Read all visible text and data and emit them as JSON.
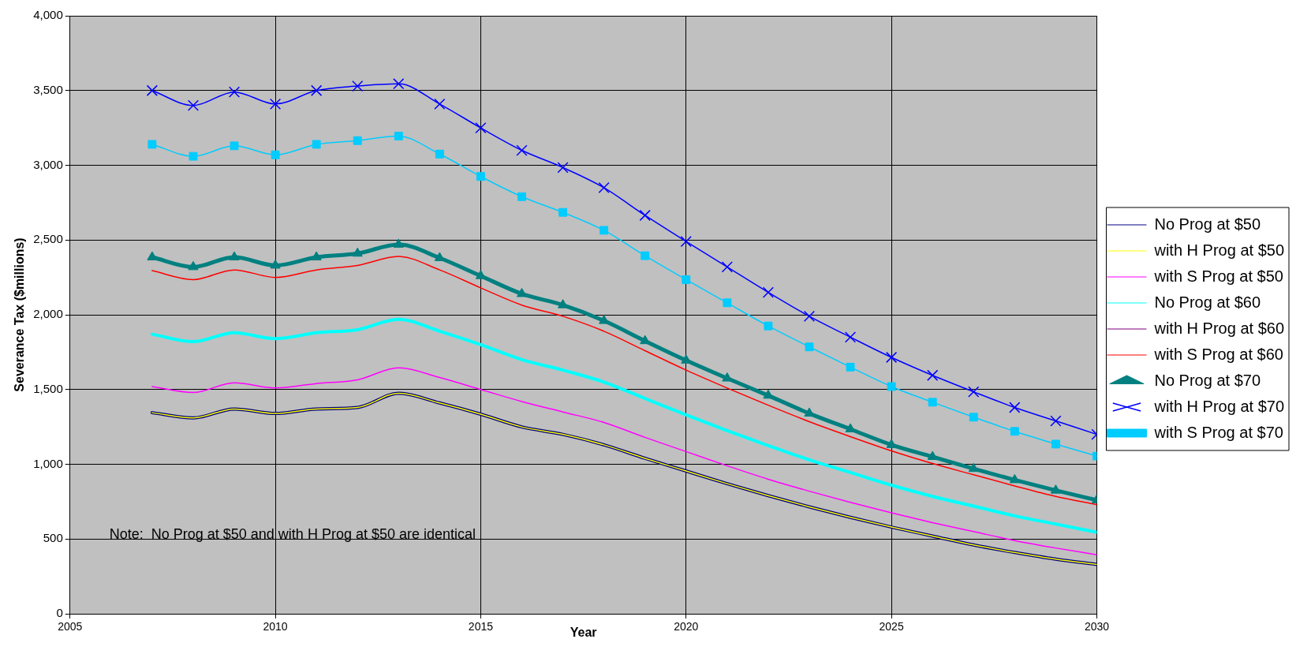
{
  "chart_data": {
    "type": "line",
    "xlabel": "Year",
    "ylabel": "Severance Tax ($millions)",
    "x": [
      2007,
      2008,
      2009,
      2010,
      2011,
      2012,
      2013,
      2014,
      2015,
      2016,
      2017,
      2018,
      2019,
      2020,
      2021,
      2022,
      2023,
      2024,
      2025,
      2026,
      2027,
      2028,
      2029,
      2030
    ],
    "xlim": [
      2005,
      2030
    ],
    "xticks": [
      2005,
      2010,
      2015,
      2020,
      2025,
      2030
    ],
    "ylim": [
      0,
      4000
    ],
    "yticks": [
      {
        "value": 0,
        "label": "0"
      },
      {
        "value": 500,
        "label": "500"
      },
      {
        "value": 1000,
        "label": "1,000"
      },
      {
        "value": 1500,
        "label": "1,500"
      },
      {
        "value": 2000,
        "label": "2,000"
      },
      {
        "value": 2500,
        "label": "2,500"
      },
      {
        "value": 3000,
        "label": "3,000"
      },
      {
        "value": 3500,
        "label": "3,500"
      },
      {
        "value": 4000,
        "label": "4,000"
      }
    ],
    "grid": true,
    "legend": "right",
    "marker": "none",
    "line_style": "solid",
    "annotations": [
      "Note:  No Prog at $50 and with H Prog at $50 are identical"
    ],
    "series": [
      {
        "name": "No Prog at $50",
        "color": "#000080",
        "values": [
          1345,
          1310,
          1370,
          1340,
          1370,
          1380,
          1475,
          1410,
          1335,
          1250,
          1200,
          1130,
          1040,
          955,
          870,
          790,
          715,
          645,
          580,
          520,
          460,
          410,
          365,
          330
        ]
      },
      {
        "name": "with H Prog at $50",
        "color": "#ffff00",
        "values": [
          1345,
          1310,
          1370,
          1340,
          1370,
          1380,
          1475,
          1410,
          1335,
          1250,
          1200,
          1130,
          1040,
          955,
          870,
          790,
          715,
          645,
          580,
          520,
          460,
          410,
          365,
          330
        ]
      },
      {
        "name": "with S Prog at $50",
        "color": "#ff00ff",
        "values": [
          1520,
          1480,
          1545,
          1510,
          1540,
          1565,
          1645,
          1580,
          1500,
          1420,
          1350,
          1280,
          1180,
          1085,
          990,
          900,
          820,
          745,
          675,
          610,
          550,
          490,
          440,
          395
        ]
      },
      {
        "name": "No Prog at $60",
        "color": "#00ffff",
        "values": [
          1870,
          1820,
          1880,
          1840,
          1880,
          1900,
          1970,
          1890,
          1800,
          1700,
          1630,
          1550,
          1440,
          1330,
          1225,
          1125,
          1030,
          945,
          860,
          785,
          720,
          655,
          600,
          545
        ]
      },
      {
        "name": "with H Prog at $60",
        "color": "#800080",
        "values": [
          null,
          null,
          null,
          null,
          null,
          null,
          null,
          null,
          null,
          null,
          null,
          null,
          null,
          null,
          null,
          null,
          null,
          null,
          null,
          null,
          null,
          null,
          null,
          null
        ]
      },
      {
        "name": "with S Prog at $60",
        "color": "#ff0000",
        "values": [
          2295,
          2235,
          2300,
          2250,
          2300,
          2330,
          2390,
          2300,
          2180,
          2065,
          1990,
          1890,
          1760,
          1630,
          1510,
          1395,
          1285,
          1185,
          1090,
          1005,
          930,
          855,
          785,
          730
        ]
      },
      {
        "name": "No Prog at $70",
        "color": "#008080",
        "marker": "triangle",
        "values": [
          2385,
          2320,
          2385,
          2330,
          2385,
          2410,
          2470,
          2380,
          2260,
          2140,
          2065,
          1960,
          1825,
          1695,
          1575,
          1460,
          1340,
          1235,
          1130,
          1050,
          970,
          895,
          825,
          760
        ]
      },
      {
        "name": "with H Prog at $70",
        "color": "#0000ff",
        "marker": "cross",
        "values": [
          3500,
          3400,
          3490,
          3410,
          3500,
          3530,
          3545,
          3410,
          3250,
          3100,
          2985,
          2850,
          2665,
          2490,
          2320,
          2150,
          1990,
          1850,
          1715,
          1595,
          1485,
          1380,
          1290,
          1200
        ]
      },
      {
        "name": "with S Prog at $70",
        "color": "#00ccff",
        "marker": "square",
        "values": [
          3140,
          3060,
          3130,
          3070,
          3140,
          3165,
          3195,
          3075,
          2925,
          2790,
          2685,
          2565,
          2395,
          2235,
          2080,
          1925,
          1785,
          1650,
          1520,
          1415,
          1315,
          1220,
          1135,
          1055
        ]
      }
    ]
  }
}
